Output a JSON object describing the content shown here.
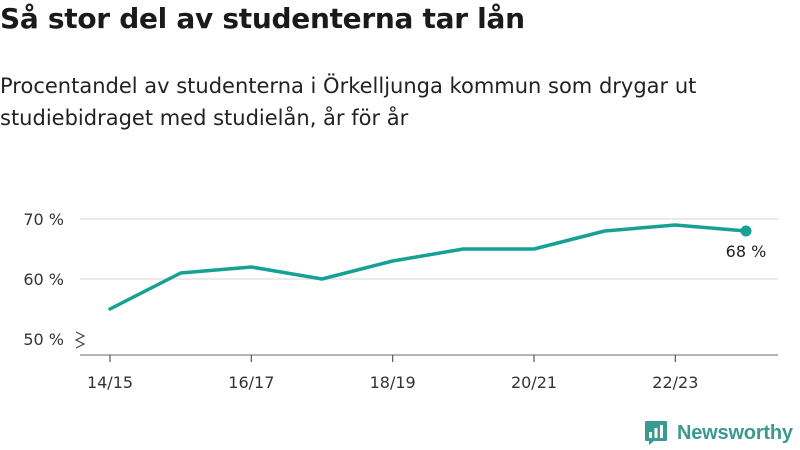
{
  "header": {
    "title": "Så stor del av studenterna tar lån",
    "subtitle": "Procentandel av studenterna i Örkelljunga kommun som drygar ut studiebidraget med studielån, år för år"
  },
  "chart_data": {
    "type": "line",
    "title": "Så stor del av studenterna tar lån",
    "subtitle": "Procentandel av studenterna i Örkelljunga kommun som drygar ut studiebidraget med studielån, år för år",
    "x": [
      "14/15",
      "15/16",
      "16/17",
      "17/18",
      "18/19",
      "19/20",
      "20/21",
      "21/22",
      "22/23",
      "23/24"
    ],
    "x_tick_labels": [
      "14/15",
      "16/17",
      "18/19",
      "20/21",
      "22/23"
    ],
    "series": [
      {
        "values": [
          55,
          61,
          62,
          60,
          63,
          65,
          65,
          68,
          69,
          68
        ]
      }
    ],
    "y_ticks": [
      50,
      60,
      70
    ],
    "y_tick_labels": [
      "50 %",
      "60 %",
      "70 %"
    ],
    "ylim": [
      48,
      72
    ],
    "y_axis_broken": true,
    "end_label": "68 %",
    "grid": true,
    "line_color": "#16a195",
    "grid_color": "#dddddd"
  },
  "branding": {
    "name": "Newsworthy",
    "icon": "bar-chart-speech-bubble-icon",
    "color": "#3a9a92"
  }
}
